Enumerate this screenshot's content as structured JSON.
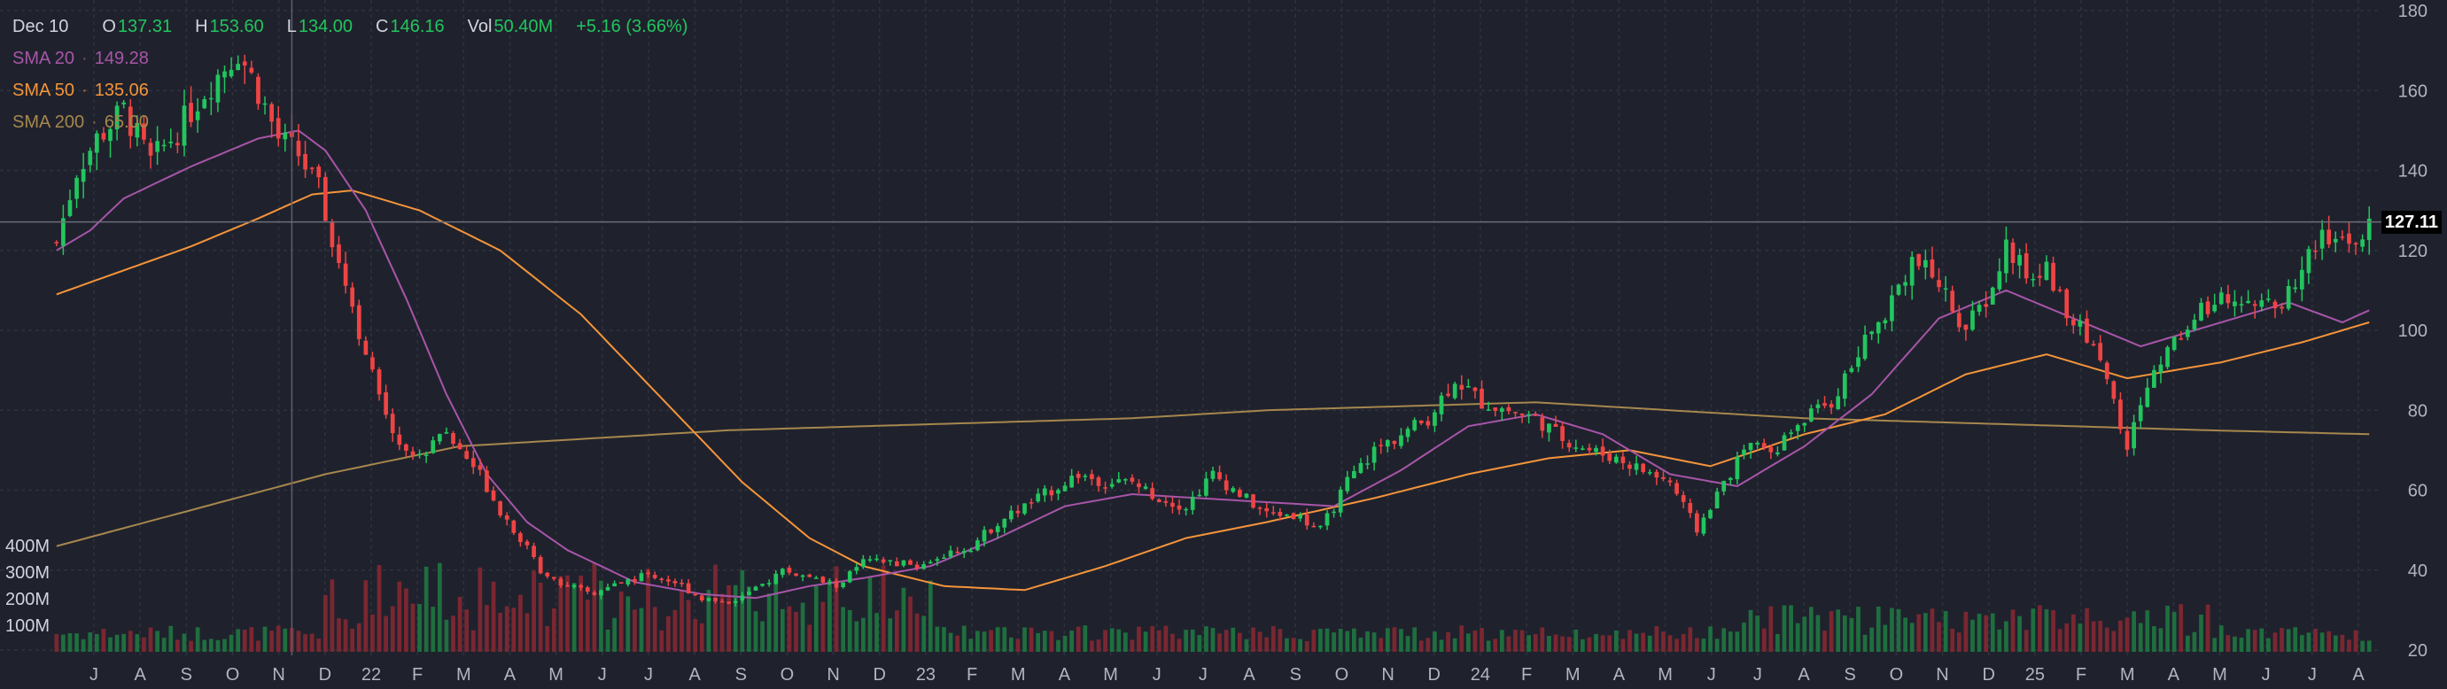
{
  "legend": {
    "date": "Dec 10",
    "open_label": "O",
    "open": "137.31",
    "high_label": "H",
    "high": "153.60",
    "low_label": "L",
    "low": "134.00",
    "close_label": "C",
    "close": "146.16",
    "vol_label": "Vol",
    "vol": "50.40M",
    "change": "+5.16 (3.66%)",
    "sma": [
      {
        "label": "SMA 20",
        "value": "149.28",
        "color": "#a855a8"
      },
      {
        "label": "SMA 50",
        "value": "135.06",
        "color": "#f5943a"
      },
      {
        "label": "SMA 200",
        "value": "65.00",
        "color": "#a6874d"
      }
    ]
  },
  "last_price": "127.11",
  "colors": {
    "up": "#22c55e",
    "down": "#ef4444",
    "vol_up": "#1f6e3f",
    "vol_down": "#7a2731",
    "grid": "#2e323d",
    "text": "#b2b5be"
  },
  "chart_data": {
    "type": "candlestick",
    "y_ticks": [
      20,
      40,
      60,
      80,
      100,
      120,
      140,
      160,
      180
    ],
    "ylim": [
      20,
      180
    ],
    "volume_ticks": [
      "100M",
      "200M",
      "300M",
      "400M"
    ],
    "volume_tick_values": [
      100,
      200,
      300,
      400
    ],
    "volume_max": 1200,
    "x_ticks": [
      "J",
      "A",
      "S",
      "O",
      "N",
      "D",
      "22",
      "F",
      "M",
      "A",
      "M",
      "J",
      "J",
      "A",
      "S",
      "O",
      "N",
      "D",
      "23",
      "F",
      "M",
      "A",
      "M",
      "J",
      "J",
      "A",
      "S",
      "O",
      "N",
      "D",
      "24",
      "F",
      "M",
      "A",
      "M",
      "J",
      "J",
      "A",
      "S",
      "O",
      "N",
      "D",
      "25",
      "F",
      "M",
      "A",
      "M",
      "J",
      "J",
      "A"
    ],
    "crosshair_week": 35,
    "last_price": 127.11,
    "close_keypoints": [
      [
        0,
        122
      ],
      [
        3,
        140
      ],
      [
        6,
        148
      ],
      [
        10,
        155
      ],
      [
        14,
        142
      ],
      [
        18,
        150
      ],
      [
        22,
        160
      ],
      [
        27,
        170
      ],
      [
        30,
        160
      ],
      [
        33,
        148
      ],
      [
        36,
        144
      ],
      [
        39,
        135
      ],
      [
        42,
        118
      ],
      [
        45,
        100
      ],
      [
        48,
        83
      ],
      [
        51,
        72
      ],
      [
        54,
        68
      ],
      [
        57,
        75
      ],
      [
        60,
        70
      ],
      [
        63,
        64
      ],
      [
        66,
        55
      ],
      [
        69,
        48
      ],
      [
        72,
        40
      ],
      [
        76,
        36
      ],
      [
        80,
        34
      ],
      [
        84,
        37
      ],
      [
        88,
        39
      ],
      [
        92,
        37
      ],
      [
        96,
        33
      ],
      [
        100,
        32
      ],
      [
        104,
        35
      ],
      [
        108,
        40
      ],
      [
        112,
        38
      ],
      [
        116,
        36
      ],
      [
        120,
        42
      ],
      [
        124,
        42
      ],
      [
        128,
        41
      ],
      [
        132,
        44
      ],
      [
        136,
        46
      ],
      [
        140,
        52
      ],
      [
        144,
        56
      ],
      [
        148,
        60
      ],
      [
        152,
        64
      ],
      [
        156,
        62
      ],
      [
        160,
        62
      ],
      [
        164,
        58
      ],
      [
        168,
        56
      ],
      [
        172,
        64
      ],
      [
        176,
        59
      ],
      [
        180,
        54
      ],
      [
        184,
        54
      ],
      [
        188,
        50
      ],
      [
        192,
        62
      ],
      [
        196,
        70
      ],
      [
        200,
        74
      ],
      [
        204,
        78
      ],
      [
        208,
        88
      ],
      [
        212,
        82
      ],
      [
        216,
        80
      ],
      [
        220,
        78
      ],
      [
        224,
        73
      ],
      [
        228,
        70
      ],
      [
        232,
        68
      ],
      [
        236,
        65
      ],
      [
        240,
        62
      ],
      [
        244,
        50
      ],
      [
        248,
        62
      ],
      [
        252,
        72
      ],
      [
        256,
        71
      ],
      [
        260,
        78
      ],
      [
        264,
        82
      ],
      [
        268,
        94
      ],
      [
        272,
        105
      ],
      [
        276,
        118
      ],
      [
        280,
        112
      ],
      [
        284,
        100
      ],
      [
        288,
        110
      ],
      [
        290,
        121
      ],
      [
        294,
        112
      ],
      [
        296,
        116
      ],
      [
        300,
        102
      ],
      [
        304,
        94
      ],
      [
        308,
        70
      ],
      [
        310,
        82
      ],
      [
        314,
        96
      ],
      [
        318,
        103
      ],
      [
        322,
        110
      ],
      [
        326,
        108
      ],
      [
        330,
        105
      ],
      [
        334,
        115
      ],
      [
        336,
        122
      ],
      [
        340,
        123
      ],
      [
        342,
        122
      ],
      [
        344,
        125
      ]
    ],
    "sma20": [
      [
        0,
        120
      ],
      [
        5,
        125
      ],
      [
        10,
        133
      ],
      [
        20,
        141
      ],
      [
        30,
        148
      ],
      [
        36,
        150
      ],
      [
        40,
        145
      ],
      [
        46,
        130
      ],
      [
        52,
        108
      ],
      [
        58,
        84
      ],
      [
        64,
        64
      ],
      [
        70,
        52
      ],
      [
        76,
        45
      ],
      [
        86,
        37
      ],
      [
        96,
        34
      ],
      [
        104,
        33
      ],
      [
        112,
        36
      ],
      [
        120,
        38
      ],
      [
        130,
        41
      ],
      [
        140,
        48
      ],
      [
        150,
        56
      ],
      [
        160,
        59
      ],
      [
        170,
        58
      ],
      [
        180,
        57
      ],
      [
        190,
        56
      ],
      [
        200,
        65
      ],
      [
        210,
        76
      ],
      [
        220,
        79
      ],
      [
        230,
        74
      ],
      [
        240,
        64
      ],
      [
        250,
        61
      ],
      [
        260,
        71
      ],
      [
        270,
        84
      ],
      [
        280,
        103
      ],
      [
        290,
        110
      ],
      [
        300,
        103
      ],
      [
        310,
        96
      ],
      [
        320,
        101
      ],
      [
        332,
        107
      ],
      [
        340,
        102
      ],
      [
        344,
        105
      ]
    ],
    "sma50": [
      [
        0,
        109
      ],
      [
        10,
        115
      ],
      [
        20,
        121
      ],
      [
        30,
        128
      ],
      [
        38,
        134
      ],
      [
        44,
        135
      ],
      [
        54,
        130
      ],
      [
        66,
        120
      ],
      [
        78,
        104
      ],
      [
        90,
        83
      ],
      [
        102,
        62
      ],
      [
        112,
        48
      ],
      [
        120,
        41
      ],
      [
        132,
        36
      ],
      [
        144,
        35
      ],
      [
        156,
        41
      ],
      [
        168,
        48
      ],
      [
        180,
        52
      ],
      [
        196,
        58
      ],
      [
        210,
        64
      ],
      [
        222,
        68
      ],
      [
        234,
        70
      ],
      [
        246,
        66
      ],
      [
        260,
        74
      ],
      [
        272,
        79
      ],
      [
        284,
        89
      ],
      [
        296,
        94
      ],
      [
        308,
        88
      ],
      [
        322,
        92
      ],
      [
        334,
        97
      ],
      [
        344,
        102
      ]
    ],
    "sma200": [
      [
        0,
        46
      ],
      [
        20,
        55
      ],
      [
        40,
        64
      ],
      [
        60,
        71
      ],
      [
        80,
        73
      ],
      [
        100,
        75
      ],
      [
        120,
        76
      ],
      [
        140,
        77
      ],
      [
        160,
        78
      ],
      [
        180,
        80
      ],
      [
        200,
        81
      ],
      [
        220,
        82
      ],
      [
        240,
        80
      ],
      [
        260,
        78
      ],
      [
        280,
        77
      ],
      [
        300,
        76
      ],
      [
        320,
        75
      ],
      [
        344,
        74
      ]
    ],
    "weeks": 345
  }
}
